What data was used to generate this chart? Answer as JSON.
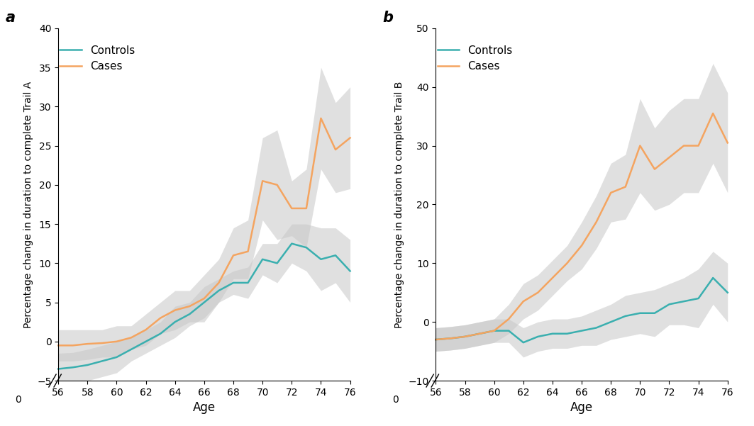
{
  "ages": [
    56,
    57,
    58,
    59,
    60,
    61,
    62,
    63,
    64,
    65,
    66,
    67,
    68,
    69,
    70,
    71,
    72,
    73,
    74,
    75,
    76
  ],
  "panel_a": {
    "controls_mean": [
      -3.5,
      -3.3,
      -3.0,
      -2.5,
      -2.0,
      -1.0,
      0.0,
      1.0,
      2.5,
      3.5,
      5.0,
      6.5,
      7.5,
      7.5,
      10.5,
      10.0,
      12.5,
      12.0,
      10.5,
      11.0,
      9.0
    ],
    "controls_lower": [
      -5.5,
      -5.2,
      -5.0,
      -4.5,
      -4.0,
      -2.5,
      -1.5,
      -0.5,
      0.5,
      2.0,
      3.0,
      5.0,
      6.0,
      5.5,
      8.5,
      7.5,
      10.0,
      9.0,
      6.5,
      7.5,
      5.0
    ],
    "controls_upper": [
      -1.5,
      -1.4,
      -1.0,
      -0.5,
      0.0,
      0.5,
      1.5,
      2.5,
      4.5,
      5.0,
      7.0,
      8.0,
      9.0,
      9.5,
      12.5,
      12.5,
      15.0,
      15.0,
      14.5,
      14.5,
      13.0
    ],
    "cases_mean": [
      -0.5,
      -0.5,
      -0.3,
      -0.2,
      0.0,
      0.5,
      1.5,
      3.0,
      4.0,
      4.5,
      5.5,
      7.5,
      11.0,
      11.5,
      20.5,
      20.0,
      17.0,
      17.0,
      28.5,
      24.5,
      26.0
    ],
    "cases_lower": [
      -2.5,
      -2.5,
      -2.3,
      -2.0,
      -2.0,
      -1.0,
      -0.5,
      1.0,
      1.5,
      2.5,
      2.5,
      5.0,
      8.0,
      8.0,
      15.5,
      13.0,
      13.5,
      12.0,
      22.0,
      19.0,
      19.5
    ],
    "cases_upper": [
      1.5,
      1.5,
      1.5,
      1.5,
      2.0,
      2.0,
      3.5,
      5.0,
      6.5,
      6.5,
      8.5,
      10.5,
      14.5,
      15.5,
      26.0,
      27.0,
      20.5,
      22.0,
      35.0,
      30.5,
      32.5
    ],
    "ylabel": "Percentage change in duration to complete Trail A",
    "ylim": [
      -5,
      40
    ],
    "yticks": [
      -5,
      0,
      5,
      10,
      15,
      20,
      25,
      30,
      35,
      40
    ]
  },
  "panel_b": {
    "controls_mean": [
      -3.0,
      -2.8,
      -2.5,
      -2.0,
      -1.5,
      -1.5,
      -3.5,
      -2.5,
      -2.0,
      -2.0,
      -1.5,
      -1.0,
      0.0,
      1.0,
      1.5,
      1.5,
      3.0,
      3.5,
      4.0,
      7.5,
      5.0
    ],
    "controls_lower": [
      -5.0,
      -4.8,
      -4.5,
      -4.0,
      -3.5,
      -3.5,
      -6.0,
      -5.0,
      -4.5,
      -4.5,
      -4.0,
      -4.0,
      -3.0,
      -2.5,
      -2.0,
      -2.5,
      -0.5,
      -0.5,
      -1.0,
      3.0,
      0.0
    ],
    "controls_upper": [
      -1.0,
      -0.8,
      -0.5,
      0.0,
      0.5,
      0.5,
      -1.0,
      0.0,
      0.5,
      0.5,
      1.0,
      2.0,
      3.0,
      4.5,
      5.0,
      5.5,
      6.5,
      7.5,
      9.0,
      12.0,
      10.0
    ],
    "cases_mean": [
      -3.0,
      -2.8,
      -2.5,
      -2.0,
      -1.5,
      0.5,
      3.5,
      5.0,
      7.5,
      10.0,
      13.0,
      17.0,
      22.0,
      23.0,
      30.0,
      26.0,
      28.0,
      30.0,
      30.0,
      35.5,
      30.5
    ],
    "cases_lower": [
      -5.0,
      -4.8,
      -4.5,
      -4.0,
      -3.5,
      -2.0,
      0.5,
      2.0,
      4.5,
      7.0,
      9.0,
      12.5,
      17.0,
      17.5,
      22.0,
      19.0,
      20.0,
      22.0,
      22.0,
      27.0,
      22.0
    ],
    "cases_upper": [
      -1.0,
      -0.8,
      -0.5,
      0.0,
      0.5,
      3.0,
      6.5,
      8.0,
      10.5,
      13.0,
      17.0,
      21.5,
      27.0,
      28.5,
      38.0,
      33.0,
      36.0,
      38.0,
      38.0,
      44.0,
      39.0
    ],
    "ylabel": "Percentage change in duration to complete Trail B",
    "ylim": [
      -10,
      50
    ],
    "yticks": [
      -10,
      0,
      10,
      20,
      30,
      40,
      50
    ]
  },
  "controls_color": "#3AAFAF",
  "cases_color": "#F4A460",
  "shade_color": "#C8C8C8",
  "shade_alpha": 0.55,
  "line_width": 1.8,
  "xlabel": "Age",
  "xticks": [
    56,
    58,
    60,
    62,
    64,
    66,
    68,
    70,
    72,
    74,
    76
  ],
  "background_color": "#ffffff",
  "panel_labels": [
    "a",
    "b"
  ]
}
